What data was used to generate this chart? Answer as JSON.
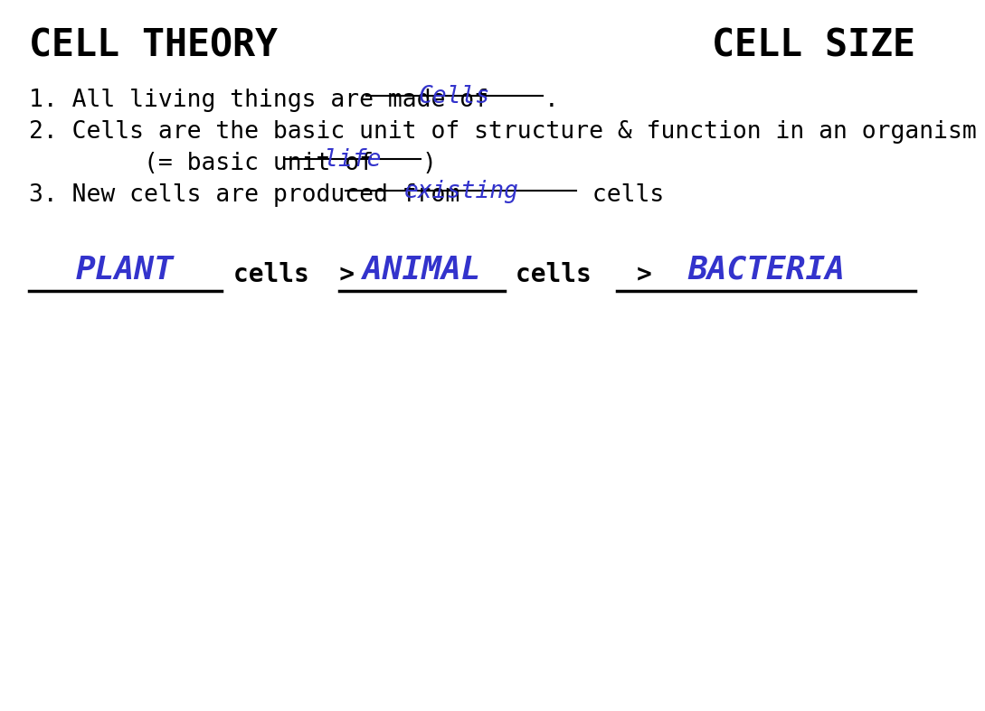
{
  "bg_color": "#ffffff",
  "title_left": "CELL THEORY",
  "title_right": "CELL SIZE",
  "title_color": "#000000",
  "answer_color": "#3333cc",
  "body_color": "#000000",
  "line1_prefix": "1. All living things are made of ",
  "line1_answer": "Cells",
  "line1_suffix": ".",
  "line2": "2. Cells are the basic unit of structure & function in an organism",
  "line3_prefix": "        (= basic unit of ",
  "line3_answer": "life",
  "line3_suffix": ")",
  "line4_prefix": "3. New cells are produced from ",
  "line4_answer": "existing",
  "line4_suffix": " cells",
  "size_label1": "PLANT",
  "size_label2": "ANIMAL",
  "size_label3": "BACTERIA",
  "cells_text1": "cells  >",
  "cells_text2": "cells   >",
  "title_fs": 30,
  "body_fs": 19,
  "answer_fs": 19,
  "size_fs": 26,
  "size_cells_fs": 20
}
